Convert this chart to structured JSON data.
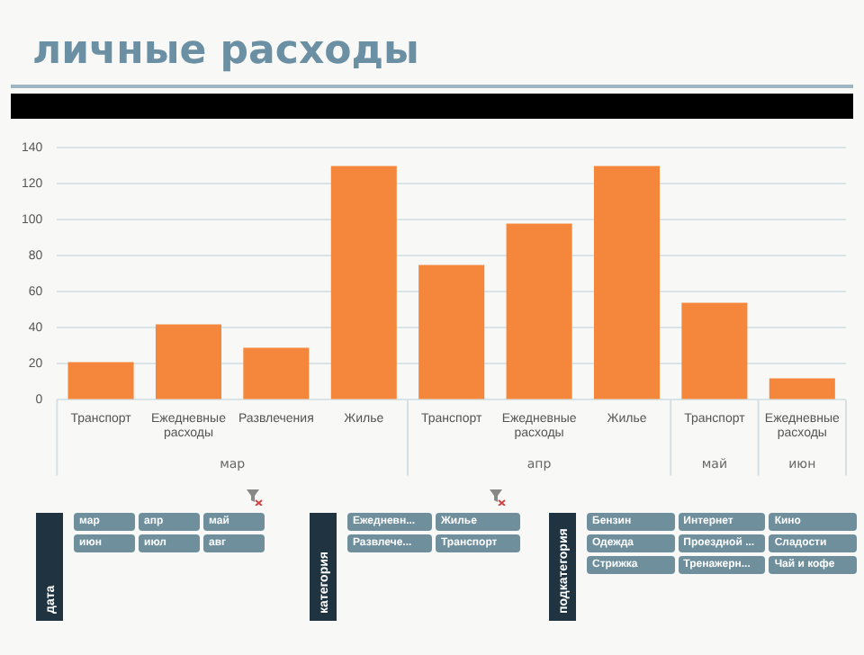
{
  "chart_data": [
    {
      "type": "bar",
      "title": "личные расходы",
      "categories": [
        "Транспорт",
        "Ежедневные расходы",
        "Развлечения",
        "Жилье",
        "Транспорт",
        "Ежедневные расходы",
        "Жилье",
        "Транспорт",
        "Ежедневные расходы"
      ],
      "values": [
        21,
        42,
        29,
        130,
        75,
        98,
        130,
        54,
        12
      ],
      "color": "#f4873c",
      "ylim": [
        0,
        140
      ],
      "yticks": [
        0,
        20,
        40,
        60,
        80,
        100,
        120,
        140
      ],
      "grid": "y",
      "annotations": [
        "мар",
        "апр",
        "май",
        "июн"
      ]
    },
    {
      "type": "other",
      "title": "дата",
      "annotations": [
        "мар",
        "апр",
        "май",
        "июн",
        "июл",
        "авг"
      ]
    },
    {
      "type": "other",
      "title": "категория",
      "annotations": [
        "Ежедневн...",
        "Жилье",
        "Развлече...",
        "Транспорт"
      ]
    },
    {
      "type": "other",
      "title": "подкатегория",
      "annotations": [
        "Бензин",
        "Интернет",
        "Кино",
        "Одежда",
        "Проездной ...",
        "Сладости",
        "Стрижка",
        "Тренажерн...",
        "Чай и кофе"
      ]
    }
  ]
}
